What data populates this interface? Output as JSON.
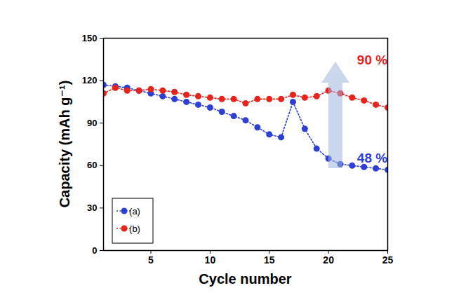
{
  "chart_data": {
    "type": "line",
    "x_label": "Cycle number",
    "y_label": "Capacity (mAh g⁻¹)",
    "x": [
      1,
      2,
      3,
      4,
      5,
      6,
      7,
      8,
      9,
      10,
      11,
      12,
      13,
      14,
      15,
      16,
      17,
      18,
      19,
      20,
      21,
      22,
      23,
      24,
      25
    ],
    "series": [
      {
        "name": "(a)",
        "color": "#2e3fd6",
        "marker": "circle",
        "line_style": "dotted",
        "values": [
          117,
          116,
          115,
          113,
          111,
          109,
          107,
          105,
          103,
          101,
          98,
          95,
          92,
          87,
          82,
          80,
          105,
          86,
          72,
          65,
          61,
          60,
          59,
          58,
          57
        ]
      },
      {
        "name": "(b)",
        "color": "#e8231c",
        "marker": "circle",
        "line_style": "dotted",
        "values": [
          111,
          115,
          113,
          113,
          114,
          113,
          112,
          110,
          109,
          108,
          107,
          107,
          104,
          107,
          107,
          107,
          110,
          108,
          109,
          113,
          111,
          108,
          106,
          103,
          101
        ]
      }
    ],
    "annotations": [
      {
        "text": "90 %",
        "series": "(b)"
      },
      {
        "text": "48 %",
        "series": "(a)"
      }
    ],
    "xlim": [
      1,
      25
    ],
    "xticks": [
      5,
      10,
      15,
      20,
      25
    ],
    "ylim": [
      0,
      150
    ],
    "yticks": [
      0,
      30,
      60,
      90,
      120,
      150
    ],
    "grid": false,
    "legend": "lower left"
  }
}
